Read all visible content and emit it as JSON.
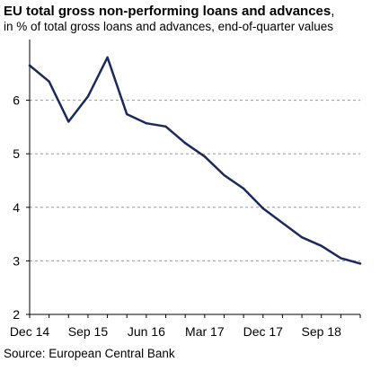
{
  "title_main": "EU total gross non-performing loans and advances",
  "title_punct": ",",
  "subtitle": "in % of total gross loans and advances, end-of-quarter values",
  "source": "Source: European Central Bank",
  "colors": {
    "line": "#1c2a5a",
    "grid": "#999999",
    "axis": "#000000"
  },
  "chart_data": {
    "type": "line",
    "title": "EU total gross non-performing loans and advances",
    "subtitle": "in % of total gross loans and advances, end-of-quarter values",
    "x": [
      "Dec 14",
      "Mar 15",
      "Jun 15",
      "Sep 15",
      "Dec 15",
      "Mar 16",
      "Jun 16",
      "Sep 16",
      "Dec 16",
      "Mar 17",
      "Jun 17",
      "Sep 17",
      "Dec 17",
      "Mar 18",
      "Jun 18",
      "Sep 18",
      "Dec 18",
      "Mar 19"
    ],
    "series": [
      {
        "values": [
          6.65,
          6.35,
          5.6,
          6.07,
          6.8,
          5.74,
          5.57,
          5.51,
          5.2,
          4.95,
          4.6,
          4.35,
          3.98,
          3.71,
          3.44,
          3.28,
          3.05,
          2.95
        ]
      }
    ],
    "x_tick_labels": [
      "Dec 14",
      "Sep 15",
      "Jun 16",
      "Mar 17",
      "Dec 17",
      "Sep 18"
    ],
    "y_ticks": [
      2,
      3,
      4,
      5,
      6
    ],
    "ylim": [
      2,
      7
    ],
    "xlabel": "",
    "ylabel": "",
    "grid": "horizontal dashed",
    "legend": "none"
  }
}
